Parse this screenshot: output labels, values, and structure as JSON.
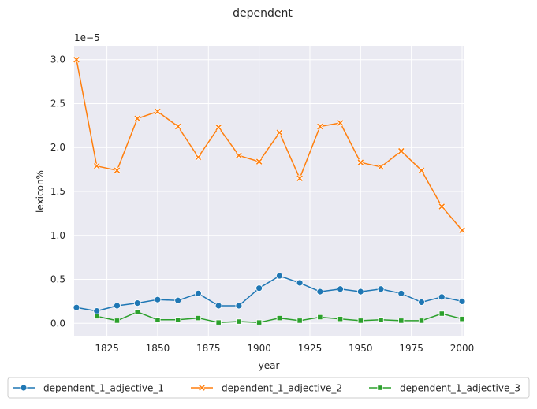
{
  "chart_data": {
    "type": "line",
    "title": "dependent",
    "xlabel": "year",
    "ylabel": "lexicon%",
    "y_scale_label": "1e−5",
    "x": [
      1810,
      1820,
      1830,
      1840,
      1850,
      1860,
      1870,
      1880,
      1890,
      1900,
      1910,
      1920,
      1930,
      1940,
      1950,
      1960,
      1970,
      1980,
      1990,
      2000
    ],
    "xlim": [
      1810,
      2000
    ],
    "ylim": [
      -0.15,
      3.15
    ],
    "x_ticks": [
      1825,
      1850,
      1875,
      1900,
      1925,
      1950,
      1975,
      2000
    ],
    "y_ticks": [
      0.0,
      0.5,
      1.0,
      1.5,
      2.0,
      2.5,
      3.0
    ],
    "y_tick_labels": [
      "0.0",
      "0.5",
      "1.0",
      "1.5",
      "2.0",
      "2.5",
      "3.0"
    ],
    "grid": true,
    "legend_position": "bottom",
    "series": [
      {
        "name": "dependent_1_adjective_1",
        "color": "#1f77b4",
        "marker": "circle",
        "values": [
          0.18,
          0.14,
          0.2,
          0.23,
          0.27,
          0.26,
          0.34,
          0.2,
          0.2,
          0.4,
          0.54,
          0.46,
          0.36,
          0.39,
          0.36,
          0.39,
          0.34,
          0.24,
          0.3,
          0.25
        ]
      },
      {
        "name": "dependent_1_adjective_2",
        "color": "#ff7f0e",
        "marker": "x",
        "values": [
          3.0,
          1.79,
          1.74,
          2.33,
          2.41,
          2.24,
          1.89,
          2.23,
          1.91,
          1.84,
          2.17,
          1.65,
          2.24,
          2.28,
          1.83,
          1.78,
          1.96,
          1.74,
          1.33,
          1.06
        ]
      },
      {
        "name": "dependent_1_adjective_3",
        "color": "#2ca02c",
        "marker": "square",
        "values": [
          null,
          0.08,
          0.03,
          0.13,
          0.04,
          0.04,
          0.06,
          0.01,
          0.02,
          0.01,
          0.06,
          0.03,
          0.07,
          0.05,
          0.03,
          0.04,
          0.03,
          0.03,
          0.11,
          0.05
        ]
      }
    ]
  }
}
